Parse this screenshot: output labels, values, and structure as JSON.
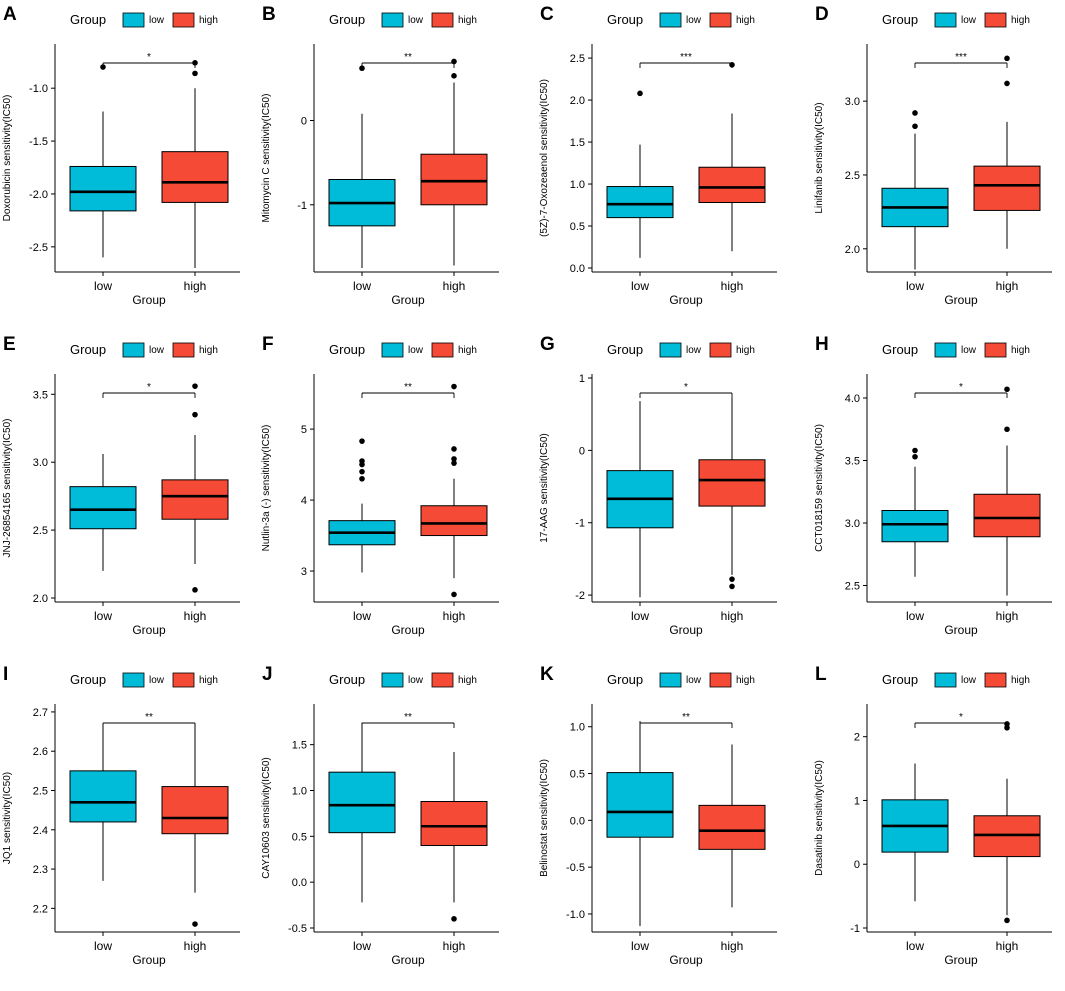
{
  "figure": {
    "legend_title": "Group",
    "group_labels": [
      "low",
      "high"
    ],
    "x_axis_label": "Group",
    "colors": {
      "low": "#00BCD8",
      "high": "#F44A36",
      "axis": "#000000"
    }
  },
  "chart_data": [
    {
      "panel": "A",
      "type": "box",
      "ylabel": "Doxorubicin sensitivity(IC50)",
      "ylim": [
        -2.7,
        -0.62
      ],
      "yticks": [
        -2.5,
        -2.0,
        -1.5,
        -1.0
      ],
      "tick_labels": [
        "-2.5",
        "-2.0",
        "-1.5",
        "-1.0"
      ],
      "significance": "*",
      "boxes": [
        {
          "group": "low",
          "min": -2.6,
          "q1": -2.16,
          "median": -1.98,
          "q3": -1.74,
          "max": -1.22,
          "outliers": [
            -0.8
          ]
        },
        {
          "group": "high",
          "min": -2.7,
          "q1": -2.08,
          "median": -1.89,
          "q3": -1.6,
          "max": -1.0,
          "outliers": [
            -0.76,
            -0.86
          ]
        }
      ]
    },
    {
      "panel": "B",
      "type": "box",
      "ylabel": "Mitomycin C sensitivity(IC50)",
      "ylim": [
        -1.75,
        0.86
      ],
      "yticks": [
        -1,
        0
      ],
      "tick_labels": [
        "-1",
        "0"
      ],
      "significance": "**",
      "boxes": [
        {
          "group": "low",
          "min": -1.75,
          "q1": -1.25,
          "median": -0.98,
          "q3": -0.7,
          "max": 0.08,
          "outliers": [
            0.62
          ]
        },
        {
          "group": "high",
          "min": -1.72,
          "q1": -1.0,
          "median": -0.72,
          "q3": -0.4,
          "max": 0.45,
          "outliers": [
            0.53,
            0.7
          ]
        }
      ]
    },
    {
      "panel": "C",
      "type": "box",
      "ylabel": "(5Z)-7-Oxozeaenol sensitivity(IC50)",
      "ylim": [
        0,
        2.62
      ],
      "yticks": [
        0.0,
        0.5,
        1.0,
        1.5,
        2.0,
        2.5
      ],
      "tick_labels": [
        "0.0",
        "0.5",
        "1.0",
        "1.5",
        "2.0",
        "2.5"
      ],
      "significance": "***",
      "boxes": [
        {
          "group": "low",
          "min": 0.12,
          "q1": 0.6,
          "median": 0.76,
          "q3": 0.97,
          "max": 1.47,
          "outliers": [
            2.08
          ]
        },
        {
          "group": "high",
          "min": 0.2,
          "q1": 0.78,
          "median": 0.96,
          "q3": 1.2,
          "max": 1.84,
          "outliers": [
            2.42
          ]
        }
      ]
    },
    {
      "panel": "D",
      "type": "box",
      "ylabel": "Linifanib sensitivity(IC50)",
      "ylim": [
        1.87,
        3.36
      ],
      "yticks": [
        2.0,
        2.5,
        3.0
      ],
      "tick_labels": [
        "2.0",
        "2.5",
        "3.0"
      ],
      "significance": "***",
      "boxes": [
        {
          "group": "low",
          "min": 1.86,
          "q1": 2.15,
          "median": 2.28,
          "q3": 2.41,
          "max": 2.78,
          "outliers": [
            2.83,
            2.92
          ]
        },
        {
          "group": "high",
          "min": 2.0,
          "q1": 2.26,
          "median": 2.43,
          "q3": 2.56,
          "max": 2.86,
          "outliers": [
            3.12,
            3.29
          ]
        }
      ]
    },
    {
      "panel": "E",
      "type": "box",
      "ylabel": "JNJ-26854165 sensitivity(IC50)",
      "ylim": [
        2.0,
        3.62
      ],
      "yticks": [
        2.0,
        2.5,
        3.0,
        3.5
      ],
      "tick_labels": [
        "2.0",
        "2.5",
        "3.0",
        "3.5"
      ],
      "significance": "*",
      "boxes": [
        {
          "group": "low",
          "min": 2.2,
          "q1": 2.51,
          "median": 2.65,
          "q3": 2.82,
          "max": 3.06,
          "outliers": []
        },
        {
          "group": "high",
          "min": 2.25,
          "q1": 2.58,
          "median": 2.75,
          "q3": 2.87,
          "max": 3.2,
          "outliers": [
            2.06,
            3.35,
            3.56
          ]
        }
      ]
    },
    {
      "panel": "F",
      "type": "box",
      "ylabel": "Nutlin-3a (-) sensitivity(IC50)",
      "ylim": [
        2.62,
        5.72
      ],
      "yticks": [
        3,
        4,
        5
      ],
      "tick_labels": [
        "3",
        "4",
        "5"
      ],
      "significance": "**",
      "boxes": [
        {
          "group": "low",
          "min": 2.98,
          "q1": 3.37,
          "median": 3.54,
          "q3": 3.71,
          "max": 3.95,
          "outliers": [
            4.3,
            4.4,
            4.5,
            4.55,
            4.83
          ]
        },
        {
          "group": "high",
          "min": 2.9,
          "q1": 3.5,
          "median": 3.67,
          "q3": 3.92,
          "max": 4.3,
          "outliers": [
            2.67,
            4.52,
            4.58,
            4.72,
            5.6
          ]
        }
      ]
    },
    {
      "panel": "G",
      "type": "box",
      "ylabel": "17-AAG sensitivity(IC50)",
      "ylim": [
        -2.04,
        1.0
      ],
      "yticks": [
        -2,
        -1,
        0,
        1
      ],
      "tick_labels": [
        "-2",
        "-1",
        "0",
        "1"
      ],
      "significance": "*",
      "boxes": [
        {
          "group": "low",
          "min": -2.03,
          "q1": -1.07,
          "median": -0.67,
          "q3": -0.28,
          "max": 0.68,
          "outliers": []
        },
        {
          "group": "high",
          "min": -1.72,
          "q1": -0.77,
          "median": -0.41,
          "q3": -0.13,
          "max": 0.73,
          "outliers": [
            -1.78,
            -1.88
          ]
        }
      ]
    },
    {
      "panel": "H",
      "type": "box",
      "ylabel": "CCT018159 sensitivity(IC50)",
      "ylim": [
        2.4,
        4.16
      ],
      "yticks": [
        2.5,
        3.0,
        3.5,
        4.0
      ],
      "tick_labels": [
        "2.5",
        "3.0",
        "3.5",
        "4.0"
      ],
      "significance": "*",
      "boxes": [
        {
          "group": "low",
          "min": 2.57,
          "q1": 2.85,
          "median": 2.99,
          "q3": 3.1,
          "max": 3.45,
          "outliers": [
            3.53,
            3.58
          ]
        },
        {
          "group": "high",
          "min": 2.42,
          "q1": 2.89,
          "median": 3.04,
          "q3": 3.23,
          "max": 3.62,
          "outliers": [
            3.75,
            4.07
          ]
        }
      ]
    },
    {
      "panel": "I",
      "type": "box",
      "ylabel": "JQ1 sensitivity(IC50)",
      "ylim": [
        2.15,
        2.71
      ],
      "yticks": [
        2.2,
        2.3,
        2.4,
        2.5,
        2.6,
        2.7
      ],
      "tick_labels": [
        "2.2",
        "2.3",
        "2.4",
        "2.5",
        "2.6",
        "2.7"
      ],
      "significance": "**",
      "boxes": [
        {
          "group": "low",
          "min": 2.27,
          "q1": 2.42,
          "median": 2.47,
          "q3": 2.55,
          "max": 2.67,
          "outliers": []
        },
        {
          "group": "high",
          "min": 2.24,
          "q1": 2.39,
          "median": 2.43,
          "q3": 2.51,
          "max": 2.67,
          "outliers": [
            2.16
          ]
        }
      ]
    },
    {
      "panel": "J",
      "type": "box",
      "ylabel": "CAY10603 sensitivity(IC50)",
      "ylim": [
        -0.5,
        1.9
      ],
      "yticks": [
        -0.5,
        0.0,
        0.5,
        1.0,
        1.5
      ],
      "tick_labels": [
        "-0.5",
        "0.0",
        "0.5",
        "1.0",
        "1.5"
      ],
      "significance": "**",
      "boxes": [
        {
          "group": "low",
          "min": -0.22,
          "q1": 0.54,
          "median": 0.84,
          "q3": 1.2,
          "max": 1.74,
          "outliers": []
        },
        {
          "group": "high",
          "min": -0.22,
          "q1": 0.4,
          "median": 0.61,
          "q3": 0.88,
          "max": 1.42,
          "outliers": [
            -0.4
          ]
        }
      ]
    },
    {
      "panel": "K",
      "type": "box",
      "ylabel": "Belinostat sensitivity(IC50)",
      "ylim": [
        -1.15,
        1.2
      ],
      "yticks": [
        -1.0,
        -0.5,
        0.0,
        0.5,
        1.0
      ],
      "tick_labels": [
        "-1.0",
        "-0.5",
        "0.0",
        "0.5",
        "1.0"
      ],
      "significance": "**",
      "boxes": [
        {
          "group": "low",
          "min": -1.13,
          "q1": -0.18,
          "median": 0.09,
          "q3": 0.51,
          "max": 1.06,
          "outliers": []
        },
        {
          "group": "high",
          "min": -0.93,
          "q1": -0.31,
          "median": -0.11,
          "q3": 0.16,
          "max": 0.81,
          "outliers": []
        }
      ]
    },
    {
      "panel": "L",
      "type": "box",
      "ylabel": "Dasatinib sensitivity(IC50)",
      "ylim": [
        -1.0,
        2.45
      ],
      "yticks": [
        -1,
        0,
        1,
        2
      ],
      "tick_labels": [
        "-1",
        "0",
        "1",
        "2"
      ],
      "significance": "*",
      "boxes": [
        {
          "group": "low",
          "min": -0.58,
          "q1": 0.19,
          "median": 0.6,
          "q3": 1.01,
          "max": 1.58,
          "outliers": []
        },
        {
          "group": "high",
          "min": -0.8,
          "q1": 0.12,
          "median": 0.46,
          "q3": 0.76,
          "max": 1.34,
          "outliers": [
            -0.88,
            2.14,
            2.2
          ]
        }
      ]
    }
  ]
}
